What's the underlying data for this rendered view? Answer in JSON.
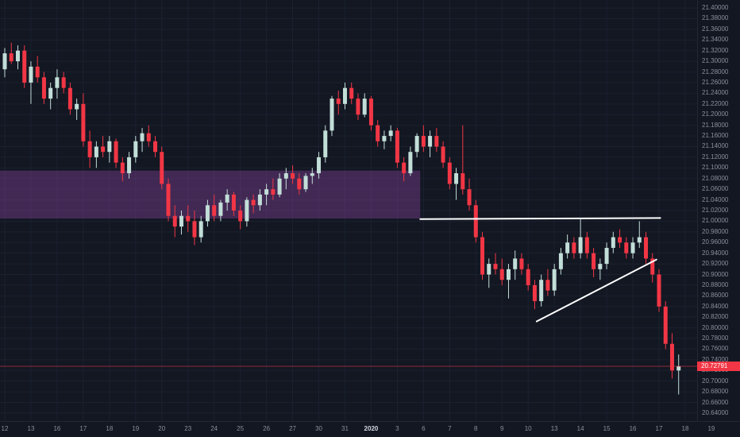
{
  "colors": {
    "background": "#131722",
    "grid": "#1b2130",
    "up": "#c2ded8",
    "down": "#f23645",
    "axis_text": "#8a8f9d",
    "drawing_line": "#ffffff",
    "zone_fill": "rgba(130,66,156,0.42)",
    "last_price": "#f23645"
  },
  "price_axis": {
    "labels": [
      "21.40000",
      "21.38000",
      "21.36000",
      "21.34000",
      "21.32000",
      "21.30000",
      "21.28000",
      "21.26000",
      "21.24000",
      "21.22000",
      "21.20000",
      "21.18000",
      "21.16000",
      "21.14000",
      "21.12000",
      "21.10000",
      "21.08000",
      "21.06000",
      "21.04000",
      "21.02000",
      "21.00000",
      "20.98000",
      "20.96000",
      "20.94000",
      "20.92000",
      "20.90000",
      "20.88000",
      "20.86000",
      "20.84000",
      "20.82000",
      "20.80000",
      "20.78000",
      "20.76000",
      "20.74000",
      "20.72000",
      "20.70000",
      "20.68000",
      "20.66000",
      "20.64000"
    ]
  },
  "time_axis": {
    "labels": [
      {
        "text": "12",
        "index": 0
      },
      {
        "text": "13",
        "index": 4
      },
      {
        "text": "16",
        "index": 8
      },
      {
        "text": "17",
        "index": 12
      },
      {
        "text": "18",
        "index": 16
      },
      {
        "text": "19",
        "index": 20
      },
      {
        "text": "20",
        "index": 24
      },
      {
        "text": "23",
        "index": 28
      },
      {
        "text": "24",
        "index": 32
      },
      {
        "text": "25",
        "index": 36
      },
      {
        "text": "26",
        "index": 40
      },
      {
        "text": "27",
        "index": 44
      },
      {
        "text": "30",
        "index": 48
      },
      {
        "text": "31",
        "index": 52
      },
      {
        "text": "2020",
        "index": 56,
        "bold": true
      },
      {
        "text": "3",
        "index": 60
      },
      {
        "text": "6",
        "index": 64
      },
      {
        "text": "7",
        "index": 68
      },
      {
        "text": "8",
        "index": 72
      },
      {
        "text": "9",
        "index": 76
      },
      {
        "text": "10",
        "index": 80
      },
      {
        "text": "13",
        "index": 84
      },
      {
        "text": "14",
        "index": 88
      },
      {
        "text": "15",
        "index": 92
      },
      {
        "text": "16",
        "index": 96
      },
      {
        "text": "17",
        "index": 100
      },
      {
        "text": "18",
        "index": 104
      },
      {
        "text": "19",
        "index": 108
      }
    ]
  },
  "price_badge": {
    "value": "20.72791"
  },
  "chart_data": {
    "type": "candlestick",
    "ylim": [
      20.625,
      21.415
    ],
    "ohlc_format": [
      "open",
      "high",
      "low",
      "close"
    ],
    "candles": [
      [
        21.285,
        21.325,
        21.27,
        21.315
      ],
      [
        21.315,
        21.335,
        21.295,
        21.3
      ],
      [
        21.3,
        21.33,
        21.285,
        21.32
      ],
      [
        21.32,
        21.33,
        21.25,
        21.26
      ],
      [
        21.26,
        21.3,
        21.22,
        21.29
      ],
      [
        21.29,
        21.31,
        21.26,
        21.27
      ],
      [
        21.27,
        21.28,
        21.22,
        21.23
      ],
      [
        21.23,
        21.26,
        21.21,
        21.25
      ],
      [
        21.25,
        21.285,
        21.23,
        21.27
      ],
      [
        21.27,
        21.28,
        21.24,
        21.25
      ],
      [
        21.25,
        21.26,
        21.2,
        21.21
      ],
      [
        21.21,
        21.23,
        21.19,
        21.22
      ],
      [
        21.22,
        21.24,
        21.14,
        21.15
      ],
      [
        21.15,
        21.17,
        21.1,
        21.12
      ],
      [
        21.12,
        21.15,
        21.1,
        21.14
      ],
      [
        21.14,
        21.16,
        21.12,
        21.13
      ],
      [
        21.13,
        21.16,
        21.11,
        21.15
      ],
      [
        21.15,
        21.155,
        21.1,
        21.11
      ],
      [
        21.11,
        21.12,
        21.075,
        21.09
      ],
      [
        21.09,
        21.13,
        21.08,
        21.12
      ],
      [
        21.12,
        21.16,
        21.11,
        21.15
      ],
      [
        21.15,
        21.175,
        21.13,
        21.165
      ],
      [
        21.165,
        21.18,
        21.14,
        21.15
      ],
      [
        21.15,
        21.16,
        21.12,
        21.13
      ],
      [
        21.13,
        21.14,
        21.06,
        21.07
      ],
      [
        21.07,
        21.08,
        21.0,
        21.01
      ],
      [
        21.01,
        21.03,
        20.97,
        20.99
      ],
      [
        20.99,
        21.02,
        20.975,
        21.01
      ],
      [
        21.01,
        21.03,
        20.98,
        21.0
      ],
      [
        21.0,
        21.02,
        20.955,
        20.97
      ],
      [
        20.97,
        21.01,
        20.96,
        21.0
      ],
      [
        21.0,
        21.04,
        20.99,
        21.03
      ],
      [
        21.03,
        21.05,
        21.0,
        21.01
      ],
      [
        21.01,
        21.04,
        21.0,
        21.035
      ],
      [
        21.035,
        21.06,
        21.02,
        21.05
      ],
      [
        21.05,
        21.055,
        21.01,
        21.02
      ],
      [
        21.02,
        21.03,
        20.985,
        21.0
      ],
      [
        21.0,
        21.045,
        20.99,
        21.04
      ],
      [
        21.04,
        21.05,
        21.015,
        21.03
      ],
      [
        21.03,
        21.06,
        21.02,
        21.05
      ],
      [
        21.05,
        21.07,
        21.03,
        21.06
      ],
      [
        21.06,
        21.08,
        21.04,
        21.05
      ],
      [
        21.05,
        21.09,
        21.045,
        21.08
      ],
      [
        21.08,
        21.1,
        21.06,
        21.09
      ],
      [
        21.09,
        21.105,
        21.07,
        21.08
      ],
      [
        21.08,
        21.09,
        21.05,
        21.06
      ],
      [
        21.06,
        21.09,
        21.055,
        21.085
      ],
      [
        21.085,
        21.1,
        21.07,
        21.09
      ],
      [
        21.09,
        21.13,
        21.08,
        21.12
      ],
      [
        21.12,
        21.18,
        21.11,
        21.17
      ],
      [
        21.17,
        21.235,
        21.16,
        21.23
      ],
      [
        21.23,
        21.245,
        21.2,
        21.22
      ],
      [
        21.22,
        21.26,
        21.21,
        21.25
      ],
      [
        21.25,
        21.26,
        21.22,
        21.23
      ],
      [
        21.23,
        21.24,
        21.19,
        21.2
      ],
      [
        21.2,
        21.24,
        21.195,
        21.23
      ],
      [
        21.23,
        21.235,
        21.17,
        21.18
      ],
      [
        21.18,
        21.19,
        21.14,
        21.15
      ],
      [
        21.15,
        21.17,
        21.135,
        21.16
      ],
      [
        21.16,
        21.18,
        21.15,
        21.17
      ],
      [
        21.17,
        21.175,
        21.1,
        21.11
      ],
      [
        21.11,
        21.12,
        21.075,
        21.09
      ],
      [
        21.09,
        21.14,
        21.085,
        21.13
      ],
      [
        21.13,
        21.165,
        21.12,
        21.16
      ],
      [
        21.16,
        21.18,
        21.13,
        21.14
      ],
      [
        21.14,
        21.17,
        21.12,
        21.16
      ],
      [
        21.16,
        21.175,
        21.13,
        21.14
      ],
      [
        21.14,
        21.15,
        21.1,
        21.11
      ],
      [
        21.11,
        21.12,
        21.06,
        21.07
      ],
      [
        21.07,
        21.1,
        21.04,
        21.09
      ],
      [
        21.09,
        21.18,
        21.05,
        21.06
      ],
      [
        21.06,
        21.08,
        21.02,
        21.03
      ],
      [
        21.03,
        21.04,
        20.96,
        20.97
      ],
      [
        20.97,
        20.98,
        20.89,
        20.9
      ],
      [
        20.9,
        20.93,
        20.875,
        20.92
      ],
      [
        20.92,
        20.94,
        20.9,
        20.91
      ],
      [
        20.91,
        20.93,
        20.88,
        20.89
      ],
      [
        20.89,
        20.92,
        20.855,
        20.91
      ],
      [
        20.91,
        20.945,
        20.89,
        20.93
      ],
      [
        20.93,
        20.94,
        20.9,
        20.91
      ],
      [
        20.91,
        20.92,
        20.87,
        20.88
      ],
      [
        20.88,
        20.89,
        20.835,
        20.85
      ],
      [
        20.85,
        20.9,
        20.84,
        20.89
      ],
      [
        20.89,
        20.91,
        20.86,
        20.87
      ],
      [
        20.87,
        20.92,
        20.86,
        20.91
      ],
      [
        20.91,
        20.95,
        20.9,
        20.94
      ],
      [
        20.94,
        20.975,
        20.93,
        20.96
      ],
      [
        20.96,
        20.97,
        20.93,
        20.94
      ],
      [
        20.94,
        21.005,
        20.93,
        20.97
      ],
      [
        20.97,
        20.98,
        20.93,
        20.94
      ],
      [
        20.94,
        20.95,
        20.895,
        20.91
      ],
      [
        20.91,
        20.93,
        20.89,
        20.92
      ],
      [
        20.92,
        20.96,
        20.91,
        20.95
      ],
      [
        20.95,
        20.98,
        20.94,
        20.97
      ],
      [
        20.97,
        20.985,
        20.95,
        20.96
      ],
      [
        20.96,
        20.97,
        20.93,
        20.94
      ],
      [
        20.94,
        20.97,
        20.93,
        20.96
      ],
      [
        20.96,
        21.0,
        20.95,
        20.97
      ],
      [
        20.97,
        20.98,
        20.92,
        20.93
      ],
      [
        20.93,
        20.94,
        20.885,
        20.9
      ],
      [
        20.9,
        20.91,
        20.83,
        20.84
      ],
      [
        20.84,
        20.85,
        20.76,
        20.77
      ],
      [
        20.77,
        20.79,
        20.705,
        20.72
      ],
      [
        20.72,
        20.75,
        20.675,
        20.72791
      ]
    ],
    "overlays": {
      "supply_zone": {
        "from_index": 0,
        "to_index": 63.5,
        "top": 21.095,
        "bottom": 21.005,
        "color": "rgba(130,66,156,0.42)"
      },
      "resistance_line": {
        "x1_index": 63.5,
        "x2_index": 100.2,
        "price1": 21.004,
        "price2": 21.006,
        "color": "#ffffff"
      },
      "ascending_trendline": {
        "x1_index": 81.3,
        "x2_index": 99.6,
        "price1": 20.812,
        "price2": 20.928,
        "color": "#ffffff"
      },
      "last_price": {
        "price": 20.72791
      }
    }
  }
}
